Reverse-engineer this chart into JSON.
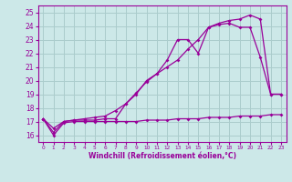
{
  "background_color": "#cce8e8",
  "grid_color": "#aacccc",
  "line_color": "#990099",
  "xlabel": "Windchill (Refroidissement éolien,°C)",
  "xlim": [
    -0.5,
    23.5
  ],
  "ylim": [
    15.5,
    25.5
  ],
  "yticks": [
    16,
    17,
    18,
    19,
    20,
    21,
    22,
    23,
    24,
    25
  ],
  "xticks": [
    0,
    1,
    2,
    3,
    4,
    5,
    6,
    7,
    8,
    9,
    10,
    11,
    12,
    13,
    14,
    15,
    16,
    17,
    18,
    19,
    20,
    21,
    22,
    23
  ],
  "line1_x": [
    0,
    1,
    2,
    3,
    4,
    5,
    6,
    7,
    8,
    9,
    10,
    11,
    12,
    13,
    14,
    15,
    16,
    17,
    18,
    19,
    20,
    21,
    22,
    23
  ],
  "line1_y": [
    17.2,
    16.0,
    16.9,
    17.0,
    17.0,
    17.0,
    17.0,
    17.0,
    17.0,
    17.0,
    17.1,
    17.1,
    17.1,
    17.2,
    17.2,
    17.2,
    17.3,
    17.3,
    17.3,
    17.4,
    17.4,
    17.4,
    17.5,
    17.5
  ],
  "line2_x": [
    0,
    1,
    2,
    3,
    4,
    5,
    6,
    7,
    8,
    9,
    10,
    11,
    12,
    13,
    14,
    15,
    16,
    17,
    18,
    19,
    20,
    21,
    22,
    23
  ],
  "line2_y": [
    17.2,
    16.2,
    17.0,
    17.1,
    17.2,
    17.3,
    17.4,
    17.8,
    18.3,
    19.1,
    19.9,
    20.5,
    21.0,
    21.5,
    22.3,
    23.0,
    23.9,
    24.2,
    24.4,
    24.5,
    24.8,
    24.5,
    19.0,
    19.0
  ],
  "line3_x": [
    0,
    1,
    2,
    3,
    4,
    5,
    6,
    7,
    8,
    9,
    10,
    11,
    12,
    13,
    14,
    15,
    16,
    17,
    18,
    19,
    20,
    21,
    22,
    23
  ],
  "line3_y": [
    17.2,
    16.5,
    17.0,
    17.1,
    17.1,
    17.1,
    17.2,
    17.2,
    18.3,
    19.0,
    20.0,
    20.5,
    21.5,
    23.0,
    23.0,
    22.0,
    23.9,
    24.1,
    24.2,
    23.9,
    23.9,
    21.7,
    19.0,
    19.0
  ]
}
